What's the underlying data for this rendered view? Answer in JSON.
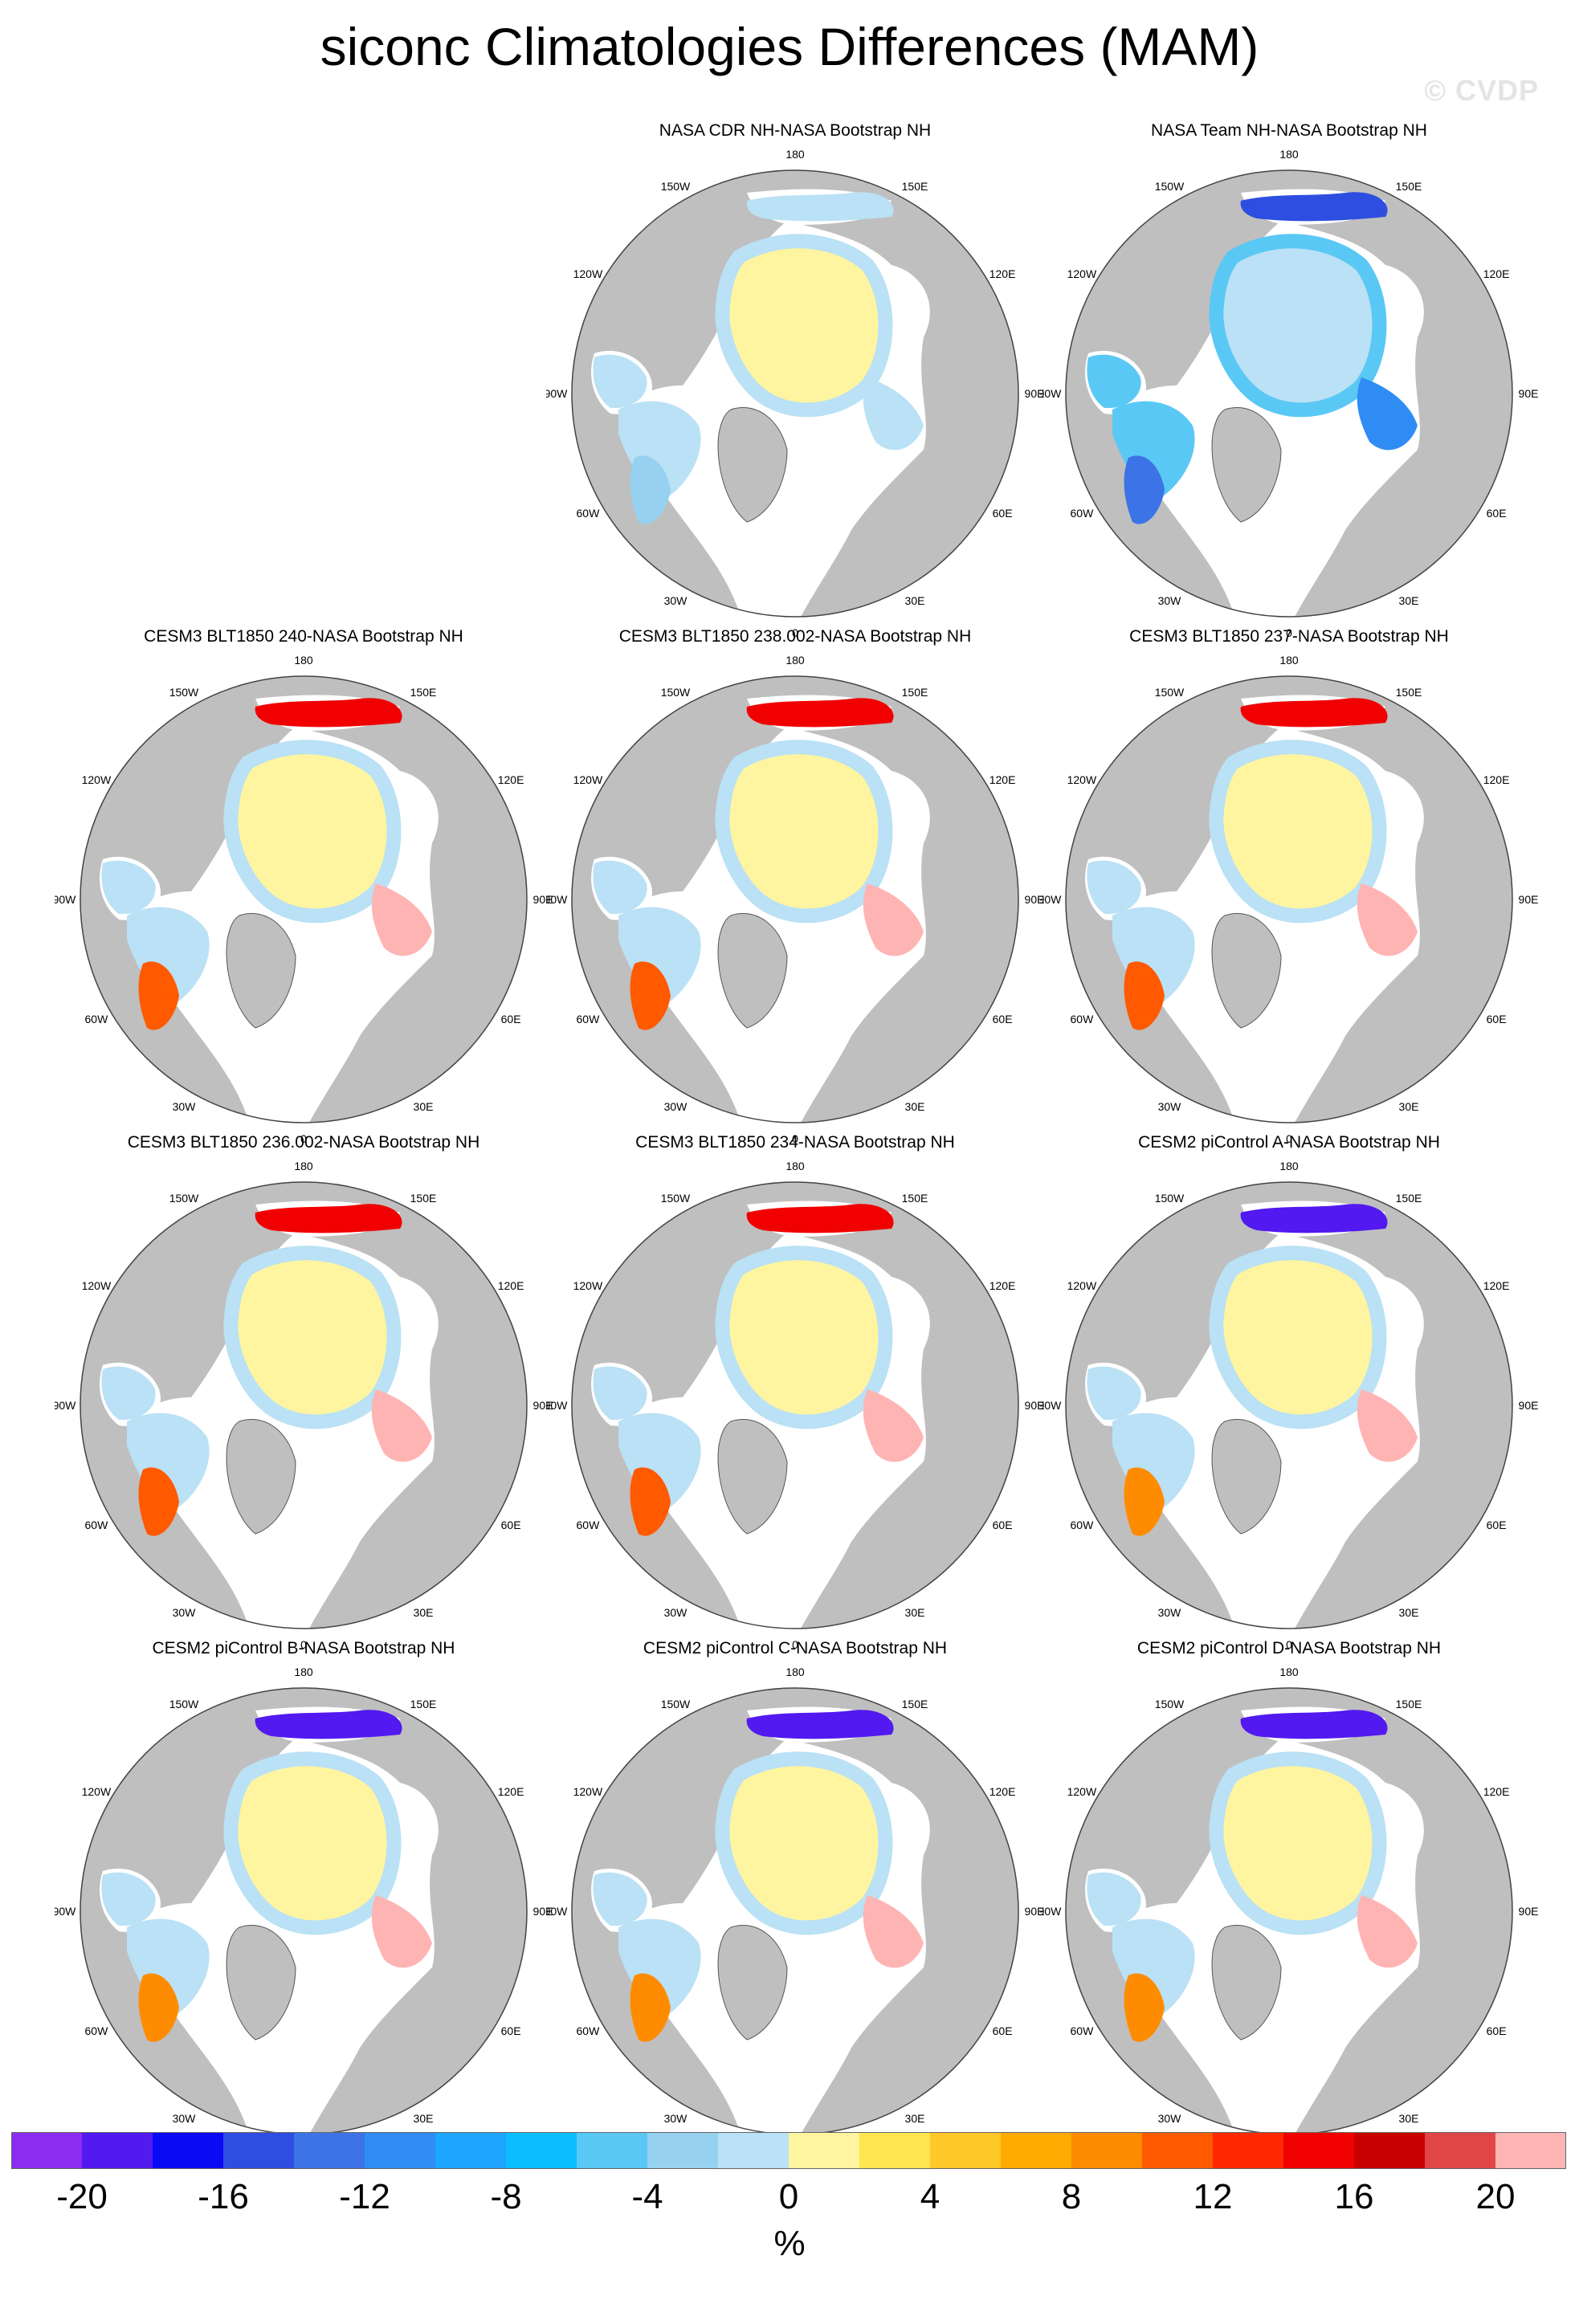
{
  "title": "siconc Climatologies Differences (MAM)",
  "watermark": "© CVDP",
  "panels": [
    {
      "title": "NASA CDR NH-NASA Bootstrap NH",
      "style": "cdr"
    },
    {
      "title": "NASA Team NH-NASA Bootstrap NH",
      "style": "team"
    },
    {
      "title": "CESM3 BLT1850 240-NASA Bootstrap NH",
      "style": "cesm3"
    },
    {
      "title": "CESM3 BLT1850 238.002-NASA Bootstrap NH",
      "style": "cesm3"
    },
    {
      "title": "CESM3 BLT1850 237-NASA Bootstrap NH",
      "style": "cesm3"
    },
    {
      "title": "CESM3 BLT1850 236.002-NASA Bootstrap NH",
      "style": "cesm3"
    },
    {
      "title": "CESM3 BLT1850 234-NASA Bootstrap NH",
      "style": "cesm3"
    },
    {
      "title": "CESM2 piControl A-NASA Bootstrap NH",
      "style": "cesm2"
    },
    {
      "title": "CESM2 piControl B-NASA Bootstrap NH",
      "style": "cesm2"
    },
    {
      "title": "CESM2 piControl C-NASA Bootstrap NH",
      "style": "cesm2"
    },
    {
      "title": "CESM2 piControl D-NASA Bootstrap NH",
      "style": "cesm2"
    }
  ],
  "lon_labels": [
    "180",
    "150E",
    "120E",
    "90E",
    "60E",
    "30E",
    "0",
    "30W",
    "60W",
    "90W",
    "120W",
    "150W"
  ],
  "colorbar": {
    "ticks": [
      "-20",
      "-16",
      "-12",
      "-8",
      "-4",
      "0",
      "4",
      "8",
      "12",
      "16",
      "20"
    ],
    "unit": "%",
    "colors": [
      "#8c2cf0",
      "#5219f0",
      "#0a0af5",
      "#2d4ee0",
      "#3c73e6",
      "#2f8cf5",
      "#1ea5ff",
      "#0abeff",
      "#5ac8f5",
      "#96d2f0",
      "#bae1f5",
      "#fff5a0",
      "#ffe650",
      "#ffc828",
      "#ffaa00",
      "#ff8c00",
      "#ff5a00",
      "#ff2800",
      "#f00000",
      "#c80000",
      "#e14646",
      "#ffb4b4"
    ]
  },
  "colors": {
    "land": "#bfbfbf",
    "ocean": "#ffffff",
    "coast": "#555555"
  }
}
